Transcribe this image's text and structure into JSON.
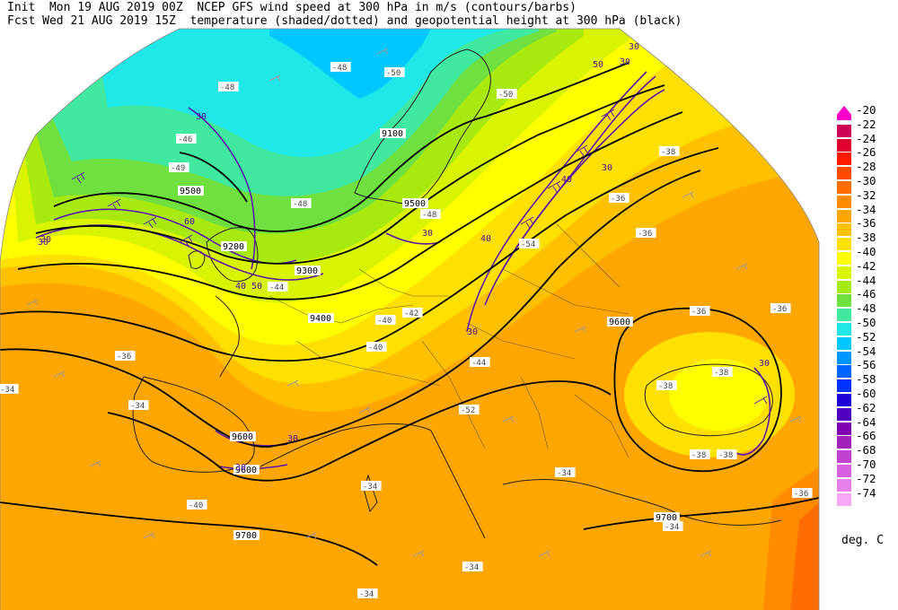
{
  "header": {
    "line1": "Init  Mon 19 AUG 2019 00Z  NCEP GFS wind speed at 300 hPa in m/s (contours/barbs)",
    "line2": "Fcst Wed 21 AUG 2019 15Z  temperature (shaded/dotted) and geopotential height at 300 hPa (black)"
  },
  "colorbar": {
    "unit_label": "deg. C",
    "levels": [
      {
        "label": "-20",
        "color": "#ff00cc"
      },
      {
        "label": "-22",
        "color": "#cc0055"
      },
      {
        "label": "-24",
        "color": "#e00030"
      },
      {
        "label": "-26",
        "color": "#ff1a00"
      },
      {
        "label": "-28",
        "color": "#ff4a00"
      },
      {
        "label": "-30",
        "color": "#ff6c00"
      },
      {
        "label": "-32",
        "color": "#ff8c00"
      },
      {
        "label": "-34",
        "color": "#ffa600"
      },
      {
        "label": "-36",
        "color": "#ffc000"
      },
      {
        "label": "-38",
        "color": "#ffe000"
      },
      {
        "label": "-40",
        "color": "#ffff00"
      },
      {
        "label": "-42",
        "color": "#d8f400"
      },
      {
        "label": "-44",
        "color": "#a8ea10"
      },
      {
        "label": "-46",
        "color": "#70e040"
      },
      {
        "label": "-48",
        "color": "#40e8a0"
      },
      {
        "label": "-50",
        "color": "#20e8e8"
      },
      {
        "label": "-52",
        "color": "#00c8ff"
      },
      {
        "label": "-54",
        "color": "#0096ff"
      },
      {
        "label": "-56",
        "color": "#0064ff"
      },
      {
        "label": "-58",
        "color": "#0032ff"
      },
      {
        "label": "-60",
        "color": "#2000d8"
      },
      {
        "label": "-62",
        "color": "#5000c0"
      },
      {
        "label": "-64",
        "color": "#8000b0"
      },
      {
        "label": "-66",
        "color": "#a020b8"
      },
      {
        "label": "-68",
        "color": "#c040d0"
      },
      {
        "label": "-70",
        "color": "#d860e0"
      },
      {
        "label": "-72",
        "color": "#e880ec"
      },
      {
        "label": "-74",
        "color": "#f6a8f6"
      }
    ]
  },
  "map": {
    "height_labels": [
      "9100",
      "9200",
      "9300",
      "9400",
      "9500",
      "9600",
      "9600",
      "9600",
      "9700",
      "9700",
      "9500"
    ],
    "wind_labels": [
      "30",
      "30",
      "30",
      "30",
      "40",
      "40",
      "40",
      "50",
      "50",
      "60",
      "30",
      "30",
      "30",
      "30",
      "30",
      "30",
      "30"
    ],
    "temp_labels": [
      "-48",
      "-46",
      "-49",
      "-48",
      "-48",
      "-50",
      "-50",
      "-48",
      "-42",
      "-40",
      "-40",
      "-44",
      "-36",
      "-36",
      "-38",
      "-38",
      "-36",
      "-36",
      "-34",
      "-34",
      "-34",
      "-34",
      "-34",
      "-34",
      "-36",
      "-38",
      "-38",
      "-40",
      "-44",
      "-52",
      "-54",
      "-36",
      "-34",
      "-38"
    ]
  }
}
